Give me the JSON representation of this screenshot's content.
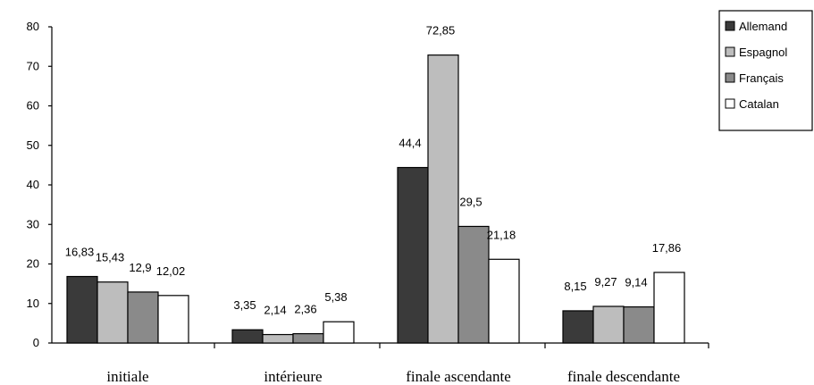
{
  "chart_data": {
    "type": "bar",
    "title": "",
    "xlabel": "",
    "ylabel": "",
    "ylim": [
      0,
      80
    ],
    "yticks": [
      0,
      10,
      20,
      30,
      40,
      50,
      60,
      70,
      80
    ],
    "grid": false,
    "legend_position": "top-right",
    "categories": [
      "initiale",
      "intérieure",
      "finale ascendante",
      "finale descendante"
    ],
    "series": [
      {
        "name": "Allemand",
        "color": "#3a3a3a",
        "values": [
          16.83,
          3.35,
          44.4,
          8.15
        ],
        "labels": [
          "16,83",
          "3,35",
          "44,4",
          "8,15"
        ]
      },
      {
        "name": "Espagnol",
        "color": "#bdbdbd",
        "values": [
          15.43,
          2.14,
          72.85,
          9.27
        ],
        "labels": [
          "15,43",
          "2,14",
          "72,85",
          "9,27"
        ]
      },
      {
        "name": "Français",
        "color": "#8a8a8a",
        "values": [
          12.9,
          2.36,
          29.5,
          9.14
        ],
        "labels": [
          "12,9",
          "2,36",
          "29,5",
          "9,14"
        ]
      },
      {
        "name": "Catalan",
        "color": "#ffffff",
        "values": [
          12.02,
          5.38,
          21.18,
          17.86
        ],
        "labels": [
          "12,02",
          "5,38",
          "21,18",
          "17,86"
        ]
      }
    ]
  }
}
